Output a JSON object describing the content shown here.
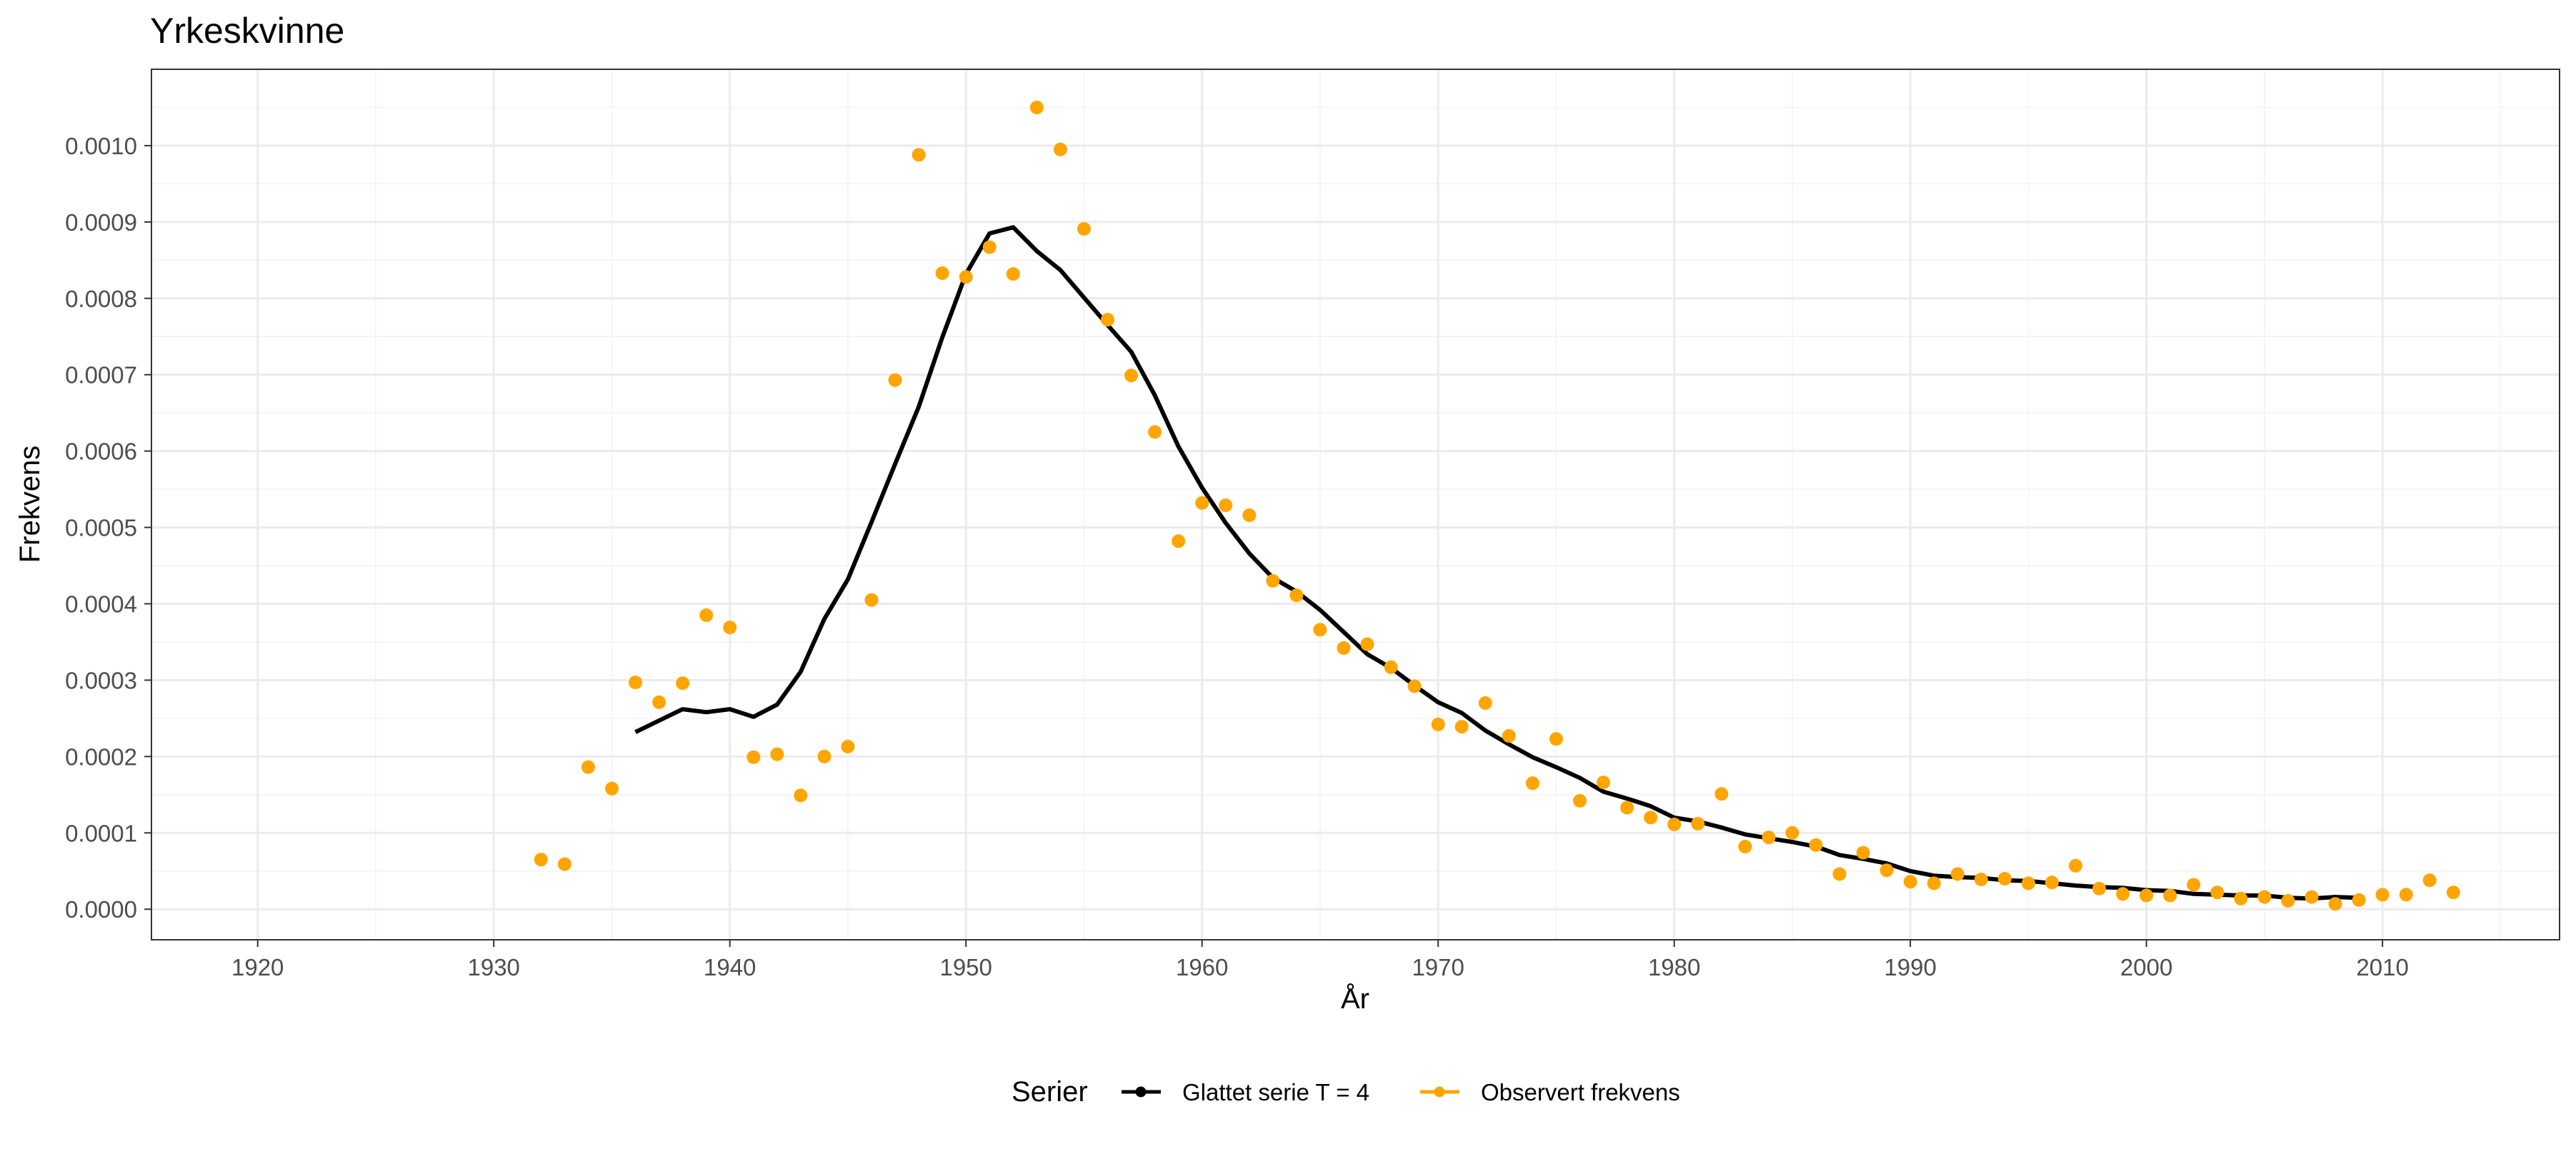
{
  "chart_data": {
    "type": "line",
    "title": "Yrkeskvinne",
    "xlabel": "År",
    "ylabel": "Frekvens",
    "xlim": [
      1915.5,
      2017.5
    ],
    "ylim": [
      -4e-05,
      0.0011
    ],
    "x_ticks": [
      1920,
      1930,
      1940,
      1950,
      1960,
      1970,
      1980,
      1990,
      2000,
      2010
    ],
    "x_tick_labels": [
      "1920",
      "1930",
      "1940",
      "1950",
      "1960",
      "1970",
      "1980",
      "1990",
      "2000",
      "2010"
    ],
    "y_ticks": [
      0,
      0.0001,
      0.0002,
      0.0003,
      0.0004,
      0.0005,
      0.0006,
      0.0007,
      0.0008,
      0.0009,
      0.001
    ],
    "y_tick_labels": [
      "0.0000",
      "0.0001",
      "0.0002",
      "0.0003",
      "0.0004",
      "0.0005",
      "0.0006",
      "0.0007",
      "0.0008",
      "0.0009",
      "0.0010"
    ],
    "grid": true,
    "legend": {
      "title": "Serier",
      "position": "bottom",
      "entries": [
        "Glattet serie T  = 4",
        "Observert frekvens"
      ]
    },
    "series": [
      {
        "name": "Glattet serie T  = 4",
        "kind": "line",
        "color": "#000000",
        "x": [
          1936,
          1937,
          1938,
          1939,
          1940,
          1941,
          1942,
          1943,
          1944,
          1945,
          1946,
          1947,
          1948,
          1949,
          1950,
          1951,
          1952,
          1953,
          1954,
          1955,
          1956,
          1957,
          1958,
          1959,
          1960,
          1961,
          1962,
          1963,
          1964,
          1965,
          1966,
          1967,
          1968,
          1969,
          1970,
          1971,
          1972,
          1973,
          1974,
          1975,
          1976,
          1977,
          1978,
          1979,
          1980,
          1981,
          1982,
          1983,
          1984,
          1985,
          1986,
          1987,
          1988,
          1989,
          1990,
          1991,
          1992,
          1993,
          1994,
          1995,
          1996,
          1997,
          1998,
          1999,
          2000,
          2001,
          2002,
          2003,
          2004,
          2005,
          2006,
          2007,
          2008,
          2009
        ],
        "y": [
          0.000232,
          0.000247,
          0.000262,
          0.000258,
          0.000262,
          0.000252,
          0.000268,
          0.000311,
          0.00038,
          0.000432,
          0.000507,
          0.000583,
          0.000658,
          0.000749,
          0.000832,
          0.000885,
          0.000893,
          0.000862,
          0.000837,
          0.000801,
          0.000765,
          0.00073,
          0.000673,
          0.000606,
          0.000552,
          0.000506,
          0.000466,
          0.000434,
          0.000416,
          0.000392,
          0.000363,
          0.000334,
          0.000316,
          0.000293,
          0.000271,
          0.000257,
          0.000234,
          0.000216,
          0.000199,
          0.000186,
          0.000172,
          0.000154,
          0.000145,
          0.000135,
          0.00012,
          0.000115,
          0.000107,
          9.8e-05,
          9.3e-05,
          8.8e-05,
          8.2e-05,
          7.1e-05,
          6.6e-05,
          6e-05,
          5e-05,
          4.4e-05,
          4.2e-05,
          4.1e-05,
          3.8e-05,
          3.7e-05,
          3.4e-05,
          3.1e-05,
          2.9e-05,
          2.8e-05,
          2.5e-05,
          2.4e-05,
          2e-05,
          1.9e-05,
          1.8e-05,
          1.8e-05,
          1.5e-05,
          1.4e-05,
          1.6e-05,
          1.5e-05
        ]
      },
      {
        "name": "Observert frekvens",
        "kind": "scatter",
        "color": "#FFA500",
        "x": [
          1932,
          1933,
          1934,
          1935,
          1936,
          1937,
          1938,
          1939,
          1940,
          1941,
          1942,
          1943,
          1944,
          1945,
          1946,
          1947,
          1948,
          1949,
          1950,
          1951,
          1952,
          1953,
          1954,
          1955,
          1956,
          1957,
          1958,
          1959,
          1960,
          1961,
          1962,
          1963,
          1964,
          1965,
          1966,
          1967,
          1968,
          1969,
          1970,
          1971,
          1972,
          1973,
          1974,
          1975,
          1976,
          1977,
          1978,
          1979,
          1980,
          1981,
          1982,
          1983,
          1984,
          1985,
          1986,
          1987,
          1988,
          1989,
          1990,
          1991,
          1992,
          1993,
          1994,
          1995,
          1996,
          1997,
          1998,
          1999,
          2000,
          2001,
          2002,
          2003,
          2004,
          2005,
          2006,
          2007,
          2008,
          2009,
          2010,
          2011,
          2012,
          2013
        ],
        "y": [
          6.5e-05,
          5.9e-05,
          0.000186,
          0.000158,
          0.000297,
          0.000271,
          0.000296,
          0.000385,
          0.000369,
          0.000199,
          0.000203,
          0.000149,
          0.0002,
          0.000213,
          0.000405,
          0.000693,
          0.000988,
          0.000833,
          0.000828,
          0.000867,
          0.000832,
          0.00105,
          0.000995,
          0.000891,
          0.000772,
          0.000699,
          0.000625,
          0.000482,
          0.000532,
          0.000529,
          0.000516,
          0.00043,
          0.000411,
          0.000366,
          0.000342,
          0.000347,
          0.000317,
          0.000292,
          0.000242,
          0.000239,
          0.00027,
          0.000227,
          0.000165,
          0.000223,
          0.000142,
          0.000166,
          0.000133,
          0.00012,
          0.000111,
          0.000112,
          0.000151,
          8.2e-05,
          9.4e-05,
          0.0001,
          8.4e-05,
          4.6e-05,
          7.4e-05,
          5.1e-05,
          3.6e-05,
          3.4e-05,
          4.6e-05,
          3.9e-05,
          4e-05,
          3.4e-05,
          3.5e-05,
          5.7e-05,
          2.7e-05,
          2e-05,
          1.8e-05,
          1.8e-05,
          3.2e-05,
          2.2e-05,
          1.4e-05,
          1.6e-05,
          1.1e-05,
          1.6e-05,
          7e-06,
          1.2e-05,
          1.9e-05,
          1.9e-05,
          3.8e-05,
          2.2e-05
        ]
      }
    ]
  }
}
